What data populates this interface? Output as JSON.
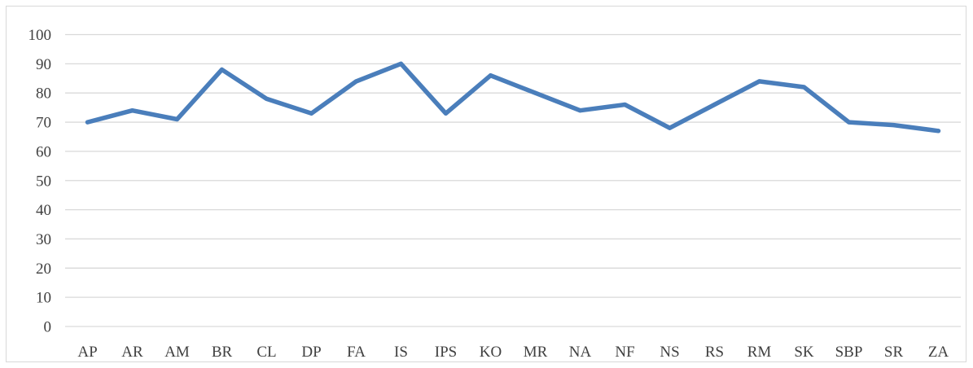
{
  "chart_data": {
    "type": "line",
    "title": "",
    "xlabel": "",
    "ylabel": "",
    "categories": [
      "AP",
      "AR",
      "AM",
      "BR",
      "CL",
      "DP",
      "FA",
      "IS",
      "IPS",
      "KO",
      "MR",
      "NA",
      "NF",
      "NS",
      "RS",
      "RM",
      "SK",
      "SBP",
      "SR",
      "ZA"
    ],
    "series": [
      {
        "values": [
          70,
          74,
          71,
          88,
          78,
          73,
          84,
          90,
          73,
          86,
          80,
          74,
          76,
          68,
          76,
          84,
          82,
          70,
          69,
          67
        ]
      }
    ],
    "ylim": [
      0,
      100
    ],
    "yticks": [
      0,
      10,
      20,
      30,
      40,
      50,
      60,
      70,
      80,
      90,
      100
    ],
    "grid": "horizontal",
    "legend": "none",
    "colors": {
      "series": "#4a7ebb",
      "grid": "#d9d9d9",
      "axis": "#d9d9d9",
      "text": "#404040"
    }
  }
}
